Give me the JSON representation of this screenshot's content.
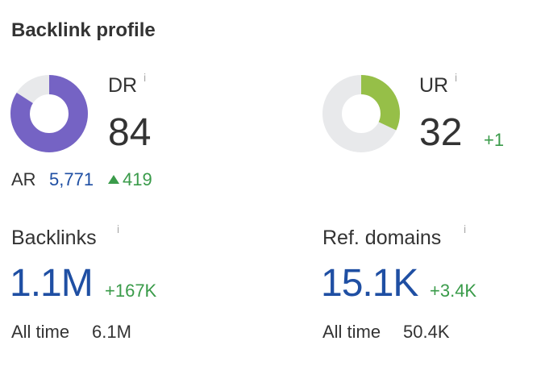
{
  "title": "Backlink profile",
  "dr": {
    "label": "DR",
    "info_icon": "i",
    "value": "84",
    "fill_fraction": 0.84,
    "color": "#7563c4"
  },
  "ur": {
    "label": "UR",
    "info_icon": "i",
    "value": "32",
    "delta": "+1",
    "fill_fraction": 0.32,
    "color": "#96bf48"
  },
  "ar": {
    "label": "AR",
    "value": "5,771",
    "delta": "419"
  },
  "backlinks": {
    "label": "Backlinks",
    "info_icon": "i",
    "value": "1.1M",
    "delta": "+167K",
    "alltime_label": "All time",
    "alltime_value": "6.1M"
  },
  "ref_domains": {
    "label": "Ref. domains",
    "info_icon": "i",
    "value": "15.1K",
    "delta": "+3.4K",
    "alltime_label": "All time",
    "alltime_value": "50.4K"
  },
  "colors": {
    "track": "#e8e9eb",
    "blue_value": "#1f4fa3",
    "green_delta": "#3a9b4a"
  }
}
